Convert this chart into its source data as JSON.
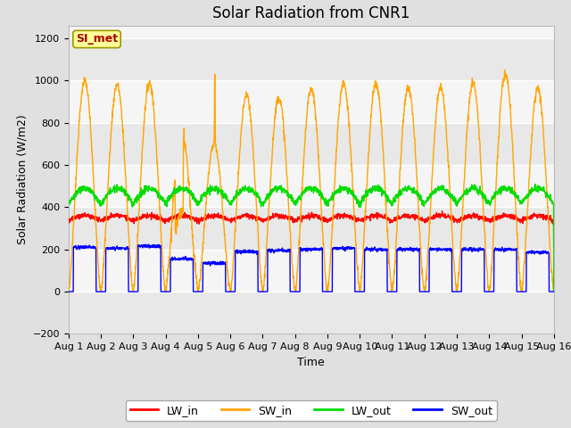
{
  "title": "Solar Radiation from CNR1",
  "xlabel": "Time",
  "ylabel": "Solar Radiation (W/m2)",
  "xlim_days": [
    0,
    15
  ],
  "ylim": [
    -200,
    1260
  ],
  "yticks": [
    -200,
    0,
    200,
    400,
    600,
    800,
    1000,
    1200
  ],
  "x_tick_labels": [
    "Aug 1",
    "Aug 2",
    "Aug 3",
    "Aug 4",
    "Aug 5",
    "Aug 6",
    "Aug 7",
    "Aug 8",
    "Aug 9",
    "Aug 10",
    "Aug 11",
    "Aug 12",
    "Aug 13",
    "Aug 14",
    "Aug 15",
    "Aug 16"
  ],
  "colors": {
    "LW_in": "#ff0000",
    "SW_in": "#ffa500",
    "LW_out": "#00dd00",
    "SW_out": "#0000ff"
  },
  "annotation_text": "SI_met",
  "annotation_color": "#aa0000",
  "annotation_bg": "#ffff99",
  "annotation_border": "#999900",
  "plot_bg": "#f5f5f5",
  "fig_bg": "#e0e0e0",
  "linewidth": 1.0,
  "title_fontsize": 12,
  "label_fontsize": 9,
  "tick_fontsize": 8,
  "band_colors": [
    "#e8e8e8",
    "#f8f8f8"
  ]
}
